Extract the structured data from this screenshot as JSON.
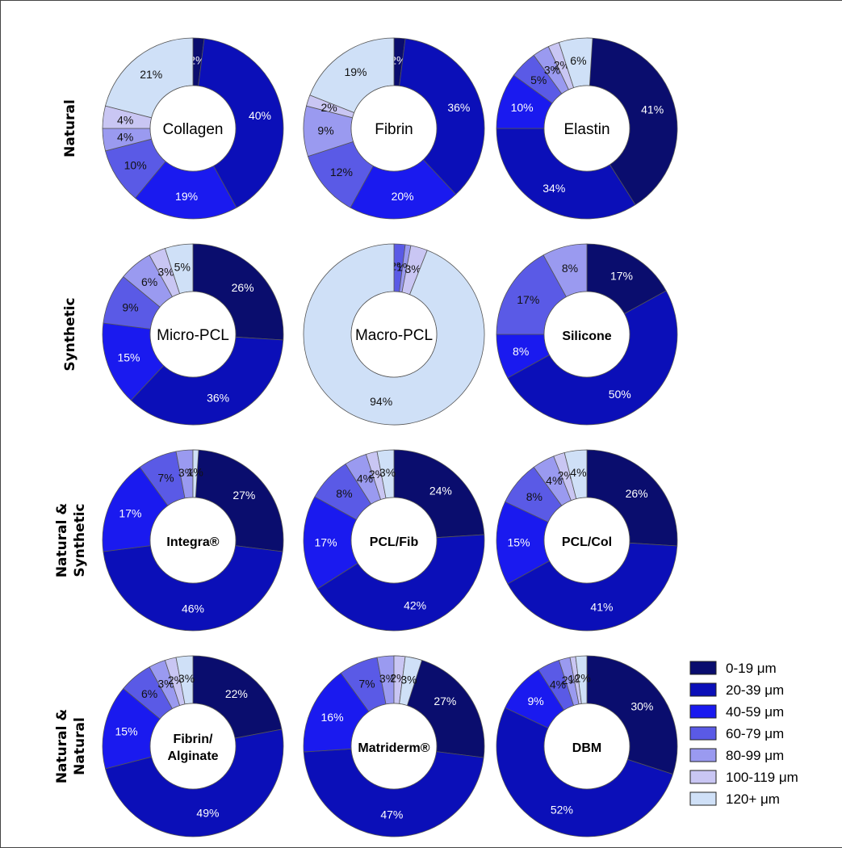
{
  "chart_data": {
    "type": "pie",
    "variant": "donut",
    "unit": "%",
    "legend": {
      "placement": "bottom-right",
      "entries": [
        {
          "label": "0-19 μm",
          "color": "#0a0d6e"
        },
        {
          "label": "20-39 μm",
          "color": "#0b0fb8"
        },
        {
          "label": "40-59 μm",
          "color": "#1a1aef"
        },
        {
          "label": "60-79 μm",
          "color": "#5a5ae6"
        },
        {
          "label": "80-99 μm",
          "color": "#9a9af0"
        },
        {
          "label": "100-119 μm",
          "color": "#c9c6f3"
        },
        {
          "label": "120+ μm",
          "color": "#cfe0f7"
        }
      ]
    },
    "rows": [
      {
        "label": "Natural",
        "charts": [
          {
            "center": "Collagen",
            "bold": false,
            "values": [
              2,
              40,
              19,
              10,
              4,
              4,
              21
            ]
          },
          {
            "center": "Fibrin",
            "bold": false,
            "values": [
              2,
              36,
              20,
              12,
              9,
              2,
              19
            ]
          },
          {
            "center": "Elastin",
            "bold": false,
            "values": [
              41,
              34,
              10,
              5,
              3,
              2,
              6
            ]
          }
        ]
      },
      {
        "label": "Synthetic",
        "charts": [
          {
            "center": "Micro-PCL",
            "bold": false,
            "values": [
              26,
              36,
              15,
              9,
              6,
              3,
              5
            ]
          },
          {
            "center": "Macro-PCL",
            "bold": false,
            "values": [
              0,
              0,
              0,
              2,
              1,
              3,
              94
            ]
          },
          {
            "center": "Silicone",
            "bold": true,
            "values": [
              17,
              50,
              8,
              17,
              8,
              0,
              0
            ]
          }
        ]
      },
      {
        "label": "Natural & Synthetic",
        "charts": [
          {
            "center": "Integra®",
            "bold": true,
            "values": [
              27,
              46,
              17,
              7,
              3,
              0,
              1
            ]
          },
          {
            "center": "PCL/Fib",
            "bold": true,
            "values": [
              24,
              42,
              17,
              8,
              4,
              2,
              3
            ]
          },
          {
            "center": "PCL/Col",
            "bold": true,
            "values": [
              26,
              41,
              15,
              8,
              4,
              2,
              4
            ]
          }
        ]
      },
      {
        "label": "Natural & Natural",
        "charts": [
          {
            "center": "Fibrin/ Alginate",
            "bold": true,
            "values": [
              22,
              49,
              15,
              6,
              3,
              2,
              3
            ]
          },
          {
            "center": "Matriderm®",
            "bold": true,
            "values": [
              27,
              47,
              16,
              7,
              3,
              2,
              3
            ]
          },
          {
            "center": "DBM",
            "bold": true,
            "values": [
              30,
              52,
              9,
              4,
              2,
              1,
              2
            ]
          }
        ]
      }
    ]
  }
}
